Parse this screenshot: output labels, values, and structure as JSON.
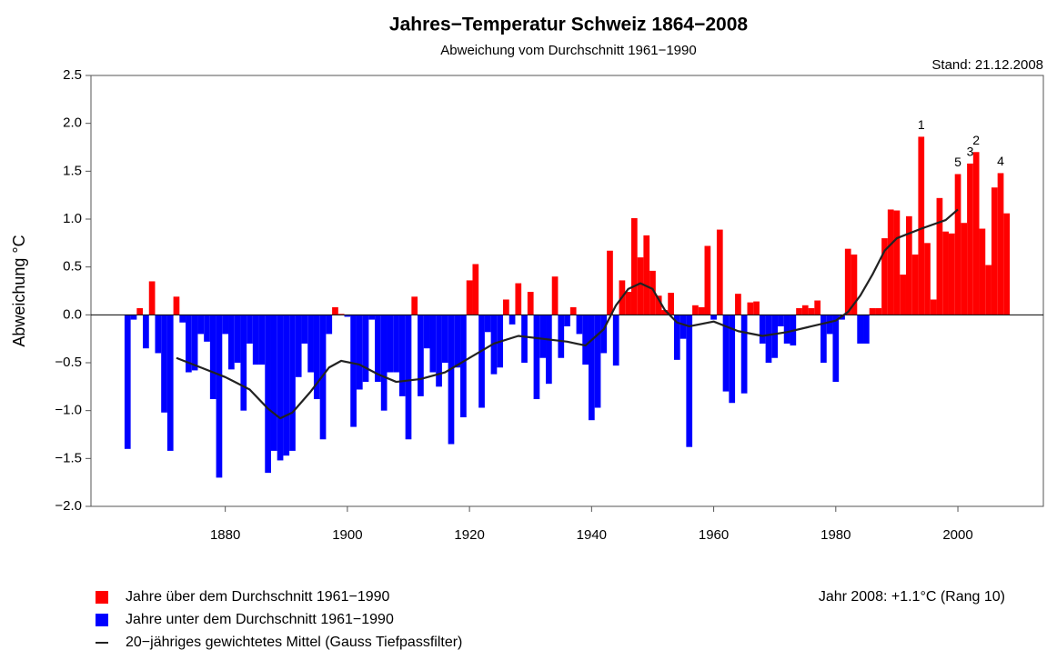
{
  "chart_data": {
    "type": "bar",
    "title": "Jahres−Temperatur Schweiz 1864−2008",
    "subtitle": "Abweichung vom Durchschnitt 1961−1990",
    "stand": "Stand: 21.12.2008",
    "y_label": "Abweichung °C",
    "note": "Jahr 2008: +1.1°C (Rang 10)",
    "x": [
      1864,
      1865,
      1866,
      1867,
      1868,
      1869,
      1870,
      1871,
      1872,
      1873,
      1874,
      1875,
      1876,
      1877,
      1878,
      1879,
      1880,
      1881,
      1882,
      1883,
      1884,
      1885,
      1886,
      1887,
      1888,
      1889,
      1890,
      1891,
      1892,
      1893,
      1894,
      1895,
      1896,
      1897,
      1898,
      1899,
      1900,
      1901,
      1902,
      1903,
      1904,
      1905,
      1906,
      1907,
      1908,
      1909,
      1910,
      1911,
      1912,
      1913,
      1914,
      1915,
      1916,
      1917,
      1918,
      1919,
      1920,
      1921,
      1922,
      1923,
      1924,
      1925,
      1926,
      1927,
      1928,
      1929,
      1930,
      1931,
      1932,
      1933,
      1934,
      1935,
      1936,
      1937,
      1938,
      1939,
      1940,
      1941,
      1942,
      1943,
      1944,
      1945,
      1946,
      1947,
      1948,
      1949,
      1950,
      1951,
      1952,
      1953,
      1954,
      1955,
      1956,
      1957,
      1958,
      1959,
      1960,
      1961,
      1962,
      1963,
      1964,
      1965,
      1966,
      1967,
      1968,
      1969,
      1970,
      1971,
      1972,
      1973,
      1974,
      1975,
      1976,
      1977,
      1978,
      1979,
      1980,
      1981,
      1982,
      1983,
      1984,
      1985,
      1986,
      1987,
      1988,
      1989,
      1990,
      1991,
      1992,
      1993,
      1994,
      1995,
      1996,
      1997,
      1998,
      1999,
      2000,
      2001,
      2002,
      2003,
      2004,
      2005,
      2006,
      2007,
      2008
    ],
    "values": [
      -1.4,
      -0.05,
      0.07,
      -0.35,
      0.35,
      -0.4,
      -1.02,
      -1.42,
      0.19,
      -0.08,
      -0.6,
      -0.58,
      -0.2,
      -0.28,
      -0.88,
      -1.7,
      -0.2,
      -0.57,
      -0.5,
      -1.0,
      -0.3,
      -0.52,
      -0.52,
      -1.65,
      -1.42,
      -1.52,
      -1.47,
      -1.42,
      -0.65,
      -0.3,
      -0.6,
      -0.88,
      -1.3,
      -0.2,
      0.08,
      0.01,
      -0.02,
      -1.17,
      -0.78,
      -0.7,
      -0.05,
      -0.7,
      -1.0,
      -0.6,
      -0.6,
      -0.85,
      -1.3,
      0.19,
      -0.85,
      -0.35,
      -0.6,
      -0.75,
      -0.5,
      -1.35,
      -0.55,
      -1.07,
      0.36,
      0.53,
      -0.97,
      -0.18,
      -0.62,
      -0.55,
      0.16,
      -0.1,
      0.33,
      -0.5,
      0.24,
      -0.88,
      -0.45,
      -0.72,
      0.4,
      -0.45,
      -0.12,
      0.08,
      -0.2,
      -0.52,
      -1.1,
      -0.97,
      -0.4,
      0.67,
      -0.53,
      0.36,
      0.24,
      1.01,
      0.6,
      0.83,
      0.46,
      0.2,
      0.05,
      0.23,
      -0.47,
      -0.25,
      -1.38,
      0.1,
      0.08,
      0.72,
      -0.05,
      0.89,
      -0.8,
      -0.92,
      0.22,
      -0.82,
      0.13,
      0.14,
      -0.3,
      -0.5,
      -0.45,
      -0.12,
      -0.3,
      -0.32,
      0.07,
      0.1,
      0.07,
      0.15,
      -0.5,
      -0.2,
      -0.7,
      -0.05,
      0.69,
      0.63,
      -0.3,
      -0.3,
      0.07,
      0.07,
      0.8,
      1.1,
      1.09,
      0.42,
      1.03,
      0.63,
      1.86,
      0.75,
      0.16,
      1.22,
      0.87,
      0.85,
      1.47,
      0.96,
      1.58,
      1.7,
      0.9,
      0.52,
      1.33,
      1.48,
      1.06
    ],
    "colors": {
      "above": "#ff0000",
      "below": "#0000ff",
      "smooth": "#222222"
    },
    "smooth": {
      "x": [
        1872,
        1876,
        1880,
        1884,
        1887,
        1889,
        1891,
        1894,
        1897,
        1899,
        1902,
        1905,
        1908,
        1912,
        1916,
        1920,
        1924,
        1928,
        1932,
        1936,
        1939,
        1942,
        1944,
        1946,
        1948,
        1950,
        1952,
        1954,
        1956,
        1960,
        1964,
        1968,
        1972,
        1976,
        1980,
        1982,
        1984,
        1986,
        1988,
        1990,
        1994,
        1998,
        2000
      ],
      "values": [
        -0.45,
        -0.55,
        -0.65,
        -0.78,
        -0.98,
        -1.08,
        -1.02,
        -0.8,
        -0.55,
        -0.48,
        -0.52,
        -0.62,
        -0.7,
        -0.67,
        -0.6,
        -0.45,
        -0.3,
        -0.22,
        -0.25,
        -0.28,
        -0.32,
        -0.15,
        0.1,
        0.27,
        0.33,
        0.27,
        0.05,
        -0.08,
        -0.12,
        -0.07,
        -0.17,
        -0.22,
        -0.18,
        -0.12,
        -0.06,
        0.03,
        0.2,
        0.42,
        0.67,
        0.8,
        0.9,
        0.99,
        1.1
      ]
    },
    "rank_labels": [
      {
        "x": 1994,
        "label": "1"
      },
      {
        "x": 2003,
        "label": "2"
      },
      {
        "x": 2002,
        "label": "3"
      },
      {
        "x": 2007,
        "label": "4"
      },
      {
        "x": 2000,
        "label": "5"
      }
    ],
    "legend": [
      "Jahre über dem Durchschnitt 1961−1990",
      "Jahre unter dem Durchschnitt 1961−1990",
      "20−jähriges gewichtetes Mittel (Gauss Tiefpassfilter)"
    ],
    "xlim": [
      1858,
      2014
    ],
    "ylim": [
      -2.0,
      2.5
    ],
    "xticks": [
      1880,
      1900,
      1920,
      1940,
      1960,
      1980,
      2000
    ],
    "yticks": [
      {
        "value": -2.0,
        "label": "−2.0"
      },
      {
        "value": -1.5,
        "label": "−1.5"
      },
      {
        "value": -1.0,
        "label": "−1.0"
      },
      {
        "value": -0.5,
        "label": "−0.5"
      },
      {
        "value": 0.0,
        "label": "0.0"
      },
      0.5,
      {
        "value": 1.0,
        "label": "1.0"
      },
      1.5,
      {
        "value": 2.0,
        "label": "2.0"
      },
      2.5
    ]
  }
}
